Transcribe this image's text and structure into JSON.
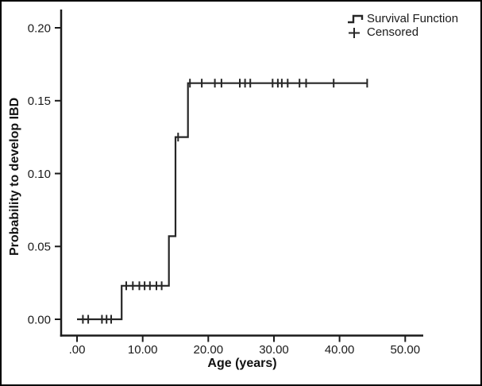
{
  "figure": {
    "background": "#ffffff",
    "border_color": "#000000",
    "axis_color": "#1a1a1a",
    "line_color": "#262626"
  },
  "legend": {
    "survival_label": "Survival Function",
    "censored_label": "Censored"
  },
  "chart_data": {
    "type": "line",
    "subtype": "kaplan-meier-cumulative-step",
    "title": "",
    "xlabel": "Age (years)",
    "ylabel": "Probability to develop IBD",
    "xlim": [
      0,
      50
    ],
    "ylim": [
      0,
      0.2
    ],
    "grid": false,
    "legend_position": "top-right",
    "x_ticks": [
      ".00",
      "10.00",
      "20.00",
      "30.00",
      "40.00",
      "50.00"
    ],
    "x_tick_values": [
      0,
      10,
      20,
      30,
      40,
      50
    ],
    "y_ticks": [
      "0.00",
      "0.05",
      "0.10",
      "0.15",
      "0.20"
    ],
    "y_tick_values": [
      0,
      0.05,
      0.1,
      0.15,
      0.2
    ],
    "series": [
      {
        "name": "Survival Function",
        "type": "step",
        "points": [
          {
            "age": 0,
            "prob": 0
          },
          {
            "age": 6.8,
            "prob": 0.023
          },
          {
            "age": 14.0,
            "prob": 0.057
          },
          {
            "age": 15.0,
            "prob": 0.125
          },
          {
            "age": 16.9,
            "prob": 0.162
          },
          {
            "age": 44.2,
            "prob": 0.162
          }
        ]
      },
      {
        "name": "Censored",
        "type": "censor-marks",
        "points": [
          {
            "age": 0.9,
            "prob": 0
          },
          {
            "age": 1.7,
            "prob": 0
          },
          {
            "age": 3.8,
            "prob": 0
          },
          {
            "age": 4.5,
            "prob": 0
          },
          {
            "age": 5.2,
            "prob": 0
          },
          {
            "age": 7.5,
            "prob": 0.023
          },
          {
            "age": 8.5,
            "prob": 0.023
          },
          {
            "age": 9.5,
            "prob": 0.023
          },
          {
            "age": 10.3,
            "prob": 0.023
          },
          {
            "age": 11.1,
            "prob": 0.023
          },
          {
            "age": 12.1,
            "prob": 0.023
          },
          {
            "age": 12.9,
            "prob": 0.023
          },
          {
            "age": 15.4,
            "prob": 0.125
          },
          {
            "age": 17.2,
            "prob": 0.162
          },
          {
            "age": 19.0,
            "prob": 0.162
          },
          {
            "age": 21.0,
            "prob": 0.162
          },
          {
            "age": 22.0,
            "prob": 0.162
          },
          {
            "age": 24.8,
            "prob": 0.162
          },
          {
            "age": 25.6,
            "prob": 0.162
          },
          {
            "age": 26.4,
            "prob": 0.162
          },
          {
            "age": 29.8,
            "prob": 0.162
          },
          {
            "age": 30.6,
            "prob": 0.162
          },
          {
            "age": 31.2,
            "prob": 0.162
          },
          {
            "age": 32.1,
            "prob": 0.162
          },
          {
            "age": 33.9,
            "prob": 0.162
          },
          {
            "age": 34.9,
            "prob": 0.162
          },
          {
            "age": 39.1,
            "prob": 0.162
          },
          {
            "age": 44.2,
            "prob": 0.162
          }
        ]
      }
    ]
  }
}
